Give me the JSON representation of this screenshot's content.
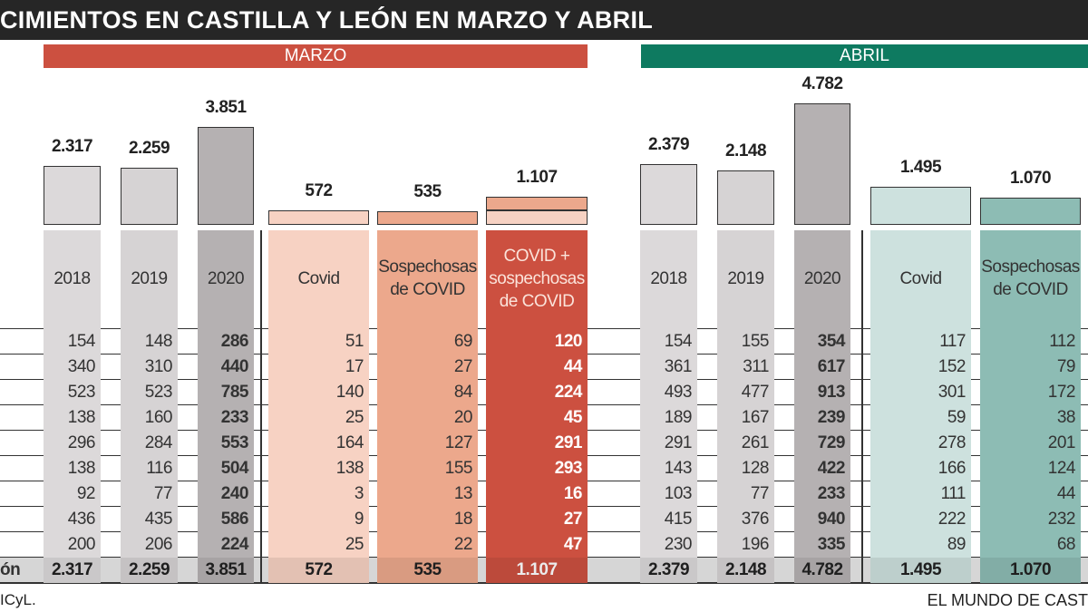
{
  "title": "CIMIENTOS EN CASTILLA Y LEÓN EN MARZO Y ABRIL",
  "months": {
    "marzo": "MARZO",
    "abril": "ABRIL"
  },
  "colors": {
    "title_bg": "#262626",
    "marzo": "#cc5040",
    "abril": "#0e7a60"
  },
  "total_row_label": "ón",
  "footer": {
    "source": "ICyL.",
    "credit": "EL MUNDO DE CAST"
  },
  "chart_data": {
    "type": "table",
    "groups": [
      {
        "name": "MARZO",
        "columns": [
          {
            "label": "2018",
            "total": "2.317",
            "total_value": 2317,
            "values": [
              154,
              340,
              523,
              138,
              296,
              138,
              92,
              436,
              200
            ],
            "color": "#dcd9da"
          },
          {
            "label": "2019",
            "total": "2.259",
            "total_value": 2259,
            "values": [
              148,
              310,
              523,
              160,
              284,
              116,
              77,
              435,
              206
            ],
            "color": "#d6d3d4"
          },
          {
            "label": "2020",
            "total": "3.851",
            "total_value": 3851,
            "values": [
              286,
              440,
              785,
              233,
              553,
              504,
              240,
              586,
              224
            ],
            "color": "#b5b1b2",
            "bold": true
          },
          {
            "label": "Covid",
            "total": "572",
            "total_value": 572,
            "values": [
              51,
              17,
              140,
              25,
              164,
              138,
              3,
              9,
              25
            ],
            "color": "#f7d2c3"
          },
          {
            "label": "Sospechosas de COVID",
            "total": "535",
            "total_value": 535,
            "values": [
              69,
              27,
              84,
              20,
              127,
              155,
              13,
              18,
              22
            ],
            "color": "#eca88c"
          },
          {
            "label": "COVID + sospechosas de COVID",
            "total": "1.107",
            "total_value": 1107,
            "values": [
              120,
              44,
              224,
              45,
              291,
              293,
              16,
              27,
              47
            ],
            "color": "#cc5040",
            "bold": true,
            "stacked": [
              572,
              535
            ]
          }
        ]
      },
      {
        "name": "ABRIL",
        "columns": [
          {
            "label": "2018",
            "total": "2.379",
            "total_value": 2379,
            "values": [
              154,
              361,
              493,
              189,
              291,
              143,
              103,
              415,
              230
            ],
            "color": "#dcd9da"
          },
          {
            "label": "2019",
            "total": "2.148",
            "total_value": 2148,
            "values": [
              155,
              311,
              477,
              167,
              261,
              128,
              77,
              376,
              196
            ],
            "color": "#d6d3d4"
          },
          {
            "label": "2020",
            "total": "4.782",
            "total_value": 4782,
            "values": [
              354,
              617,
              913,
              239,
              729,
              422,
              233,
              940,
              335
            ],
            "color": "#b5b1b2",
            "bold": true
          },
          {
            "label": "Covid",
            "total": "1.495",
            "total_value": 1495,
            "values": [
              117,
              152,
              301,
              59,
              278,
              166,
              111,
              222,
              89
            ],
            "color": "#cde1de"
          },
          {
            "label": "Sospechosas de COVID",
            "total": "1.070",
            "total_value": 1070,
            "values": [
              112,
              79,
              172,
              38,
              201,
              124,
              44,
              232,
              68
            ],
            "color": "#8dbcb4"
          }
        ]
      }
    ]
  }
}
